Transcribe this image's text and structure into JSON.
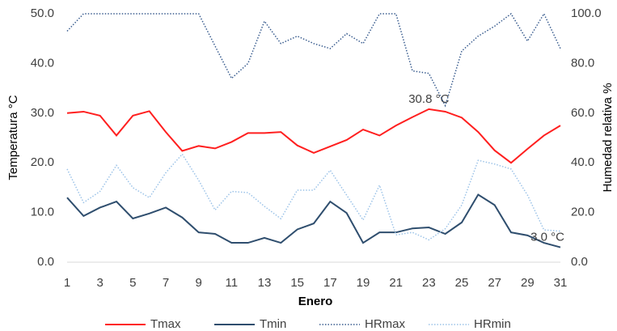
{
  "chart_data": {
    "type": "line",
    "x_label": "Enero",
    "y_label": "Temperatura °C",
    "y2_label": "Humedad relativa %",
    "x": [
      1,
      2,
      3,
      4,
      5,
      6,
      7,
      8,
      9,
      10,
      11,
      12,
      13,
      14,
      15,
      16,
      17,
      18,
      19,
      20,
      21,
      22,
      23,
      24,
      25,
      26,
      27,
      28,
      29,
      30,
      31
    ],
    "xlim": [
      1,
      31
    ],
    "xticks": [
      1,
      3,
      5,
      7,
      9,
      11,
      13,
      15,
      17,
      19,
      21,
      23,
      25,
      27,
      29,
      31
    ],
    "ylim": [
      0,
      50
    ],
    "yticks": [
      {
        "value": 0,
        "label": "0.0"
      },
      {
        "value": 10,
        "label": "10.0"
      },
      {
        "value": 20,
        "label": "20.0"
      },
      {
        "value": 30,
        "label": "30.0"
      },
      {
        "value": 40,
        "label": "40.0"
      },
      {
        "value": 50,
        "label": "50.0"
      }
    ],
    "y2lim": [
      0,
      100
    ],
    "y2ticks": [
      {
        "value": 0,
        "label": "0.0"
      },
      {
        "value": 20,
        "label": "20.0"
      },
      {
        "value": 40,
        "label": "40.0"
      },
      {
        "value": 60,
        "label": "60.0"
      },
      {
        "value": 80,
        "label": "80.0"
      },
      {
        "value": 100,
        "label": "100.0"
      }
    ],
    "grid": false,
    "legend": "bottom",
    "series": [
      {
        "name": "Tmax",
        "color": "#ff1f1f",
        "line_style": "solid",
        "values": [
          30.0,
          30.3,
          29.5,
          25.5,
          29.5,
          30.4,
          26.2,
          22.4,
          23.4,
          22.9,
          24.2,
          26.0,
          26.0,
          26.2,
          23.5,
          22.0,
          23.3,
          24.6,
          26.7,
          25.5,
          27.5,
          29.2,
          30.8,
          30.3,
          29.1,
          26.2,
          22.5,
          20.0,
          22.8,
          25.5,
          27.5
        ],
        "value_labels": [
          null,
          null,
          null,
          null,
          null,
          null,
          null,
          null,
          null,
          null,
          null,
          null,
          null,
          null,
          null,
          null,
          null,
          null,
          null,
          null,
          null,
          null,
          "30.8 °C",
          null,
          null,
          null,
          null,
          null,
          null,
          null,
          null
        ]
      },
      {
        "name": "Tmin",
        "color": "#2f4e6e",
        "line_style": "solid",
        "values": [
          13.0,
          9.3,
          11.0,
          12.2,
          8.8,
          9.8,
          11.0,
          9.0,
          6.0,
          5.7,
          3.9,
          3.9,
          4.9,
          3.9,
          6.6,
          7.8,
          12.2,
          9.9,
          3.9,
          6.0,
          6.0,
          6.8,
          7.0,
          5.7,
          8.0,
          13.6,
          11.5,
          6.0,
          5.4,
          3.9,
          3.0
        ],
        "value_labels": [
          null,
          null,
          null,
          null,
          null,
          null,
          null,
          null,
          null,
          null,
          null,
          null,
          null,
          null,
          null,
          null,
          null,
          null,
          null,
          null,
          null,
          null,
          null,
          null,
          null,
          null,
          null,
          null,
          null,
          null,
          "3.0 °C"
        ]
      },
      {
        "name": "HRmax",
        "color": "#3a5d8f",
        "line_style": "dotted",
        "axis": "y2",
        "values": [
          93,
          100,
          100,
          100,
          100,
          100,
          100,
          100,
          100,
          87,
          74,
          80,
          97,
          88,
          91,
          88,
          86,
          92,
          88,
          100,
          100,
          77,
          76,
          63,
          85,
          91,
          95,
          100,
          89,
          100,
          86
        ]
      },
      {
        "name": "HRmin",
        "color": "#9cc3e8",
        "line_style": "dotted",
        "axis": "y2",
        "values": [
          37.5,
          24,
          28.5,
          39,
          30,
          26,
          36,
          43.5,
          33,
          21,
          28.5,
          28,
          22.5,
          17.5,
          29,
          29,
          37,
          27,
          17,
          31,
          11,
          12,
          9,
          13.5,
          23,
          41,
          39.5,
          37.5,
          27,
          13,
          12.5
        ]
      }
    ]
  }
}
